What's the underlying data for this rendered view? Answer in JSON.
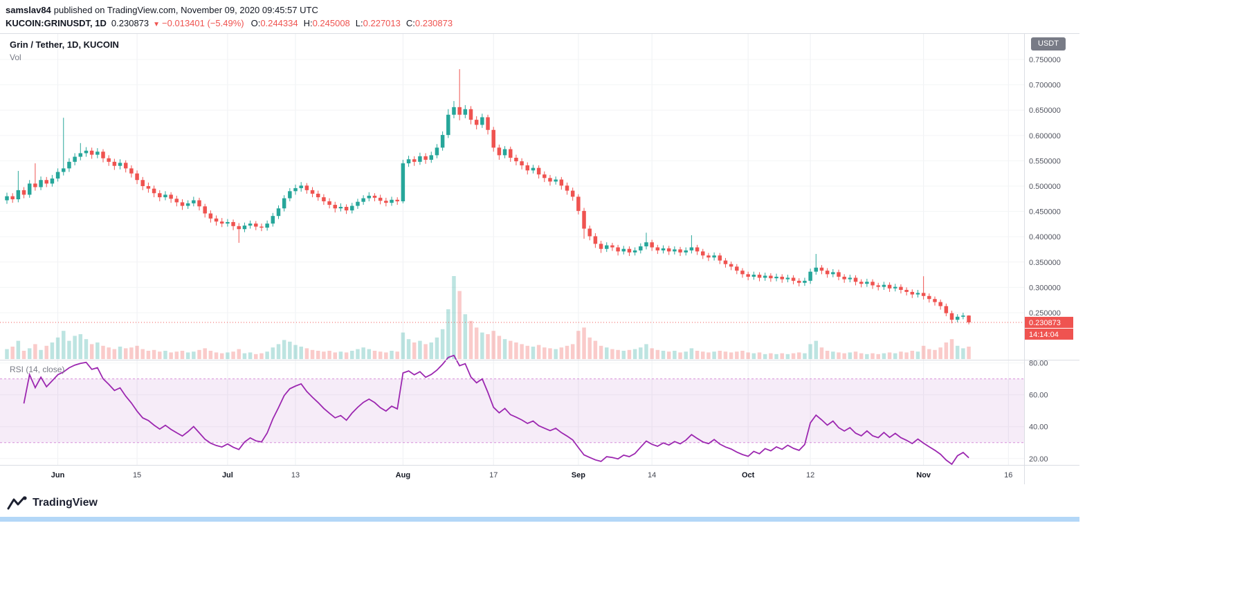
{
  "header": {
    "user": "samslav84",
    "rest": "published on TradingView.com, November 09, 2020 09:45:57 UTC"
  },
  "symbol_bar": {
    "symbol": "KUCOIN:GRINUSDT, 1D",
    "last": "0.230873",
    "arrow": "▼",
    "change": "−0.013401 (−5.49%)",
    "o_label": "O:",
    "o_value": "0.244334",
    "h_label": "H:",
    "h_value": "0.245008",
    "l_label": "L:",
    "l_value": "0.227013",
    "c_label": "C:",
    "c_value": "0.230873"
  },
  "panes": {
    "main_title": "Grin / Tether, 1D, KUCOIN",
    "vol_label": "Vol",
    "rsi_title": "RSI (14, close)"
  },
  "axis": {
    "currency": "USDT"
  },
  "footer": {
    "logo": "TradingView"
  },
  "chart_data": {
    "type": "candlestick",
    "title": "Grin / Tether, 1D, KUCOIN",
    "volume_label": "Vol",
    "rsi_label": "RSI (14, close)",
    "slots": 181,
    "last_price": 0.230873,
    "last_price_label": "0.230873",
    "countdown": "14:14:04",
    "price_axis": {
      "range": [
        0.157,
        0.802
      ],
      "tick_values": [
        0.75,
        0.7,
        0.65,
        0.6,
        0.55,
        0.5,
        0.45,
        0.4,
        0.35,
        0.3,
        0.25
      ],
      "tick_labels": [
        "0.750000",
        "0.700000",
        "0.650000",
        "0.600000",
        "0.550000",
        "0.500000",
        "0.450000",
        "0.400000",
        "0.350000",
        "0.300000",
        "0.250000"
      ],
      "unit": "USDT"
    },
    "rsi_axis": {
      "range": [
        16,
        82
      ],
      "tick_values": [
        80,
        60,
        40,
        20
      ],
      "tick_labels": [
        "80.00",
        "60.00",
        "40.00",
        "20.00"
      ],
      "band": [
        30,
        70
      ]
    },
    "time_ticks": [
      {
        "i": 9,
        "label": "Jun",
        "m": 1
      },
      {
        "i": 23,
        "label": "15"
      },
      {
        "i": 39,
        "label": "Jul",
        "m": 1
      },
      {
        "i": 51,
        "label": "13"
      },
      {
        "i": 70,
        "label": "Aug",
        "m": 1
      },
      {
        "i": 86,
        "label": "17"
      },
      {
        "i": 101,
        "label": "Sep",
        "m": 1
      },
      {
        "i": 114,
        "label": "14"
      },
      {
        "i": 131,
        "label": "Oct",
        "m": 1
      },
      {
        "i": 142,
        "label": "12"
      },
      {
        "i": 162,
        "label": "Nov",
        "m": 1
      },
      {
        "i": 177,
        "label": "16"
      }
    ],
    "colors": {
      "up": "#26a69a",
      "down": "#ef5350",
      "vol_up": "rgba(38,166,154,0.3)",
      "vol_down": "rgba(239,83,80,0.3)",
      "rsi_line": "#9c27b0",
      "band_fill": "rgba(156,39,176,0.09)",
      "band_line": "#d68fd9",
      "grid": "#eef0f3",
      "hgrid": "#f3f4f6",
      "border": "#dadde3",
      "last_line": "#ef5350"
    },
    "candles": [
      [
        0.472,
        0.487,
        0.465,
        0.48,
        1.2
      ],
      [
        0.48,
        0.486,
        0.467,
        0.474,
        1.5
      ],
      [
        0.474,
        0.53,
        0.468,
        0.492,
        2.2
      ],
      [
        0.492,
        0.498,
        0.476,
        0.483,
        1.0
      ],
      [
        0.483,
        0.512,
        0.477,
        0.505,
        1.3
      ],
      [
        0.505,
        0.545,
        0.491,
        0.498,
        1.8
      ],
      [
        0.498,
        0.519,
        0.492,
        0.512,
        1.1
      ],
      [
        0.512,
        0.518,
        0.498,
        0.505,
        1.6
      ],
      [
        0.505,
        0.522,
        0.499,
        0.515,
        2.0
      ],
      [
        0.515,
        0.535,
        0.509,
        0.528,
        2.6
      ],
      [
        0.528,
        0.635,
        0.521,
        0.535,
        3.4
      ],
      [
        0.535,
        0.555,
        0.528,
        0.548,
        2.2
      ],
      [
        0.548,
        0.565,
        0.541,
        0.558,
        2.8
      ],
      [
        0.558,
        0.585,
        0.551,
        0.565,
        3.0
      ],
      [
        0.565,
        0.577,
        0.558,
        0.57,
        2.4
      ],
      [
        0.57,
        0.576,
        0.554,
        0.562,
        1.8
      ],
      [
        0.562,
        0.575,
        0.555,
        0.568,
        2.0
      ],
      [
        0.568,
        0.573,
        0.547,
        0.555,
        1.6
      ],
      [
        0.555,
        0.561,
        0.54,
        0.548,
        1.4
      ],
      [
        0.548,
        0.554,
        0.532,
        0.54,
        1.2
      ],
      [
        0.54,
        0.553,
        0.533,
        0.546,
        1.5
      ],
      [
        0.546,
        0.551,
        0.527,
        0.535,
        1.3
      ],
      [
        0.535,
        0.541,
        0.517,
        0.525,
        1.4
      ],
      [
        0.525,
        0.531,
        0.504,
        0.512,
        1.6
      ],
      [
        0.512,
        0.518,
        0.492,
        0.5,
        1.2
      ],
      [
        0.5,
        0.507,
        0.487,
        0.495,
        1.0
      ],
      [
        0.495,
        0.501,
        0.478,
        0.486,
        1.1
      ],
      [
        0.486,
        0.492,
        0.47,
        0.478,
        0.9
      ],
      [
        0.478,
        0.49,
        0.472,
        0.483,
        1.0
      ],
      [
        0.483,
        0.488,
        0.467,
        0.475,
        0.8
      ],
      [
        0.475,
        0.481,
        0.46,
        0.468,
        0.9
      ],
      [
        0.468,
        0.474,
        0.453,
        0.461,
        1.0
      ],
      [
        0.461,
        0.472,
        0.455,
        0.466,
        0.8
      ],
      [
        0.466,
        0.479,
        0.46,
        0.472,
        0.9
      ],
      [
        0.472,
        0.477,
        0.452,
        0.46,
        1.1
      ],
      [
        0.46,
        0.465,
        0.438,
        0.446,
        1.3
      ],
      [
        0.446,
        0.452,
        0.428,
        0.436,
        1.0
      ],
      [
        0.436,
        0.442,
        0.422,
        0.43,
        0.8
      ],
      [
        0.43,
        0.437,
        0.419,
        0.426,
        0.7
      ],
      [
        0.426,
        0.435,
        0.42,
        0.429,
        0.8
      ],
      [
        0.429,
        0.434,
        0.413,
        0.421,
        0.9
      ],
      [
        0.421,
        0.427,
        0.388,
        0.415,
        1.2
      ],
      [
        0.415,
        0.428,
        0.409,
        0.422,
        0.7
      ],
      [
        0.422,
        0.432,
        0.416,
        0.426,
        0.8
      ],
      [
        0.426,
        0.431,
        0.413,
        0.42,
        0.6
      ],
      [
        0.42,
        0.426,
        0.411,
        0.418,
        0.7
      ],
      [
        0.418,
        0.432,
        0.412,
        0.426,
        0.9
      ],
      [
        0.426,
        0.447,
        0.42,
        0.441,
        1.4
      ],
      [
        0.441,
        0.462,
        0.435,
        0.456,
        1.8
      ],
      [
        0.456,
        0.482,
        0.45,
        0.476,
        2.3
      ],
      [
        0.476,
        0.496,
        0.47,
        0.49,
        2.1
      ],
      [
        0.49,
        0.503,
        0.483,
        0.496,
        1.7
      ],
      [
        0.496,
        0.508,
        0.489,
        0.501,
        1.5
      ],
      [
        0.501,
        0.506,
        0.485,
        0.492,
        1.3
      ],
      [
        0.492,
        0.498,
        0.478,
        0.485,
        1.1
      ],
      [
        0.485,
        0.491,
        0.471,
        0.478,
        1.0
      ],
      [
        0.478,
        0.484,
        0.463,
        0.47,
        0.9
      ],
      [
        0.47,
        0.476,
        0.456,
        0.463,
        1.0
      ],
      [
        0.463,
        0.469,
        0.448,
        0.456,
        0.8
      ],
      [
        0.456,
        0.466,
        0.45,
        0.459,
        0.9
      ],
      [
        0.459,
        0.464,
        0.445,
        0.452,
        0.8
      ],
      [
        0.452,
        0.467,
        0.446,
        0.461,
        1.0
      ],
      [
        0.461,
        0.475,
        0.455,
        0.469,
        1.2
      ],
      [
        0.469,
        0.482,
        0.463,
        0.476,
        1.4
      ],
      [
        0.476,
        0.488,
        0.47,
        0.481,
        1.2
      ],
      [
        0.481,
        0.486,
        0.47,
        0.477,
        1.0
      ],
      [
        0.477,
        0.483,
        0.464,
        0.471,
        0.9
      ],
      [
        0.471,
        0.477,
        0.46,
        0.467,
        0.8
      ],
      [
        0.467,
        0.479,
        0.461,
        0.473,
        1.0
      ],
      [
        0.473,
        0.478,
        0.463,
        0.47,
        0.9
      ],
      [
        0.47,
        0.552,
        0.466,
        0.545,
        3.2
      ],
      [
        0.545,
        0.56,
        0.538,
        0.553,
        2.4
      ],
      [
        0.553,
        0.559,
        0.54,
        0.548,
        2.0
      ],
      [
        0.548,
        0.566,
        0.542,
        0.559,
        2.2
      ],
      [
        0.559,
        0.565,
        0.544,
        0.552,
        1.8
      ],
      [
        0.552,
        0.568,
        0.546,
        0.561,
        2.0
      ],
      [
        0.561,
        0.583,
        0.555,
        0.576,
        2.6
      ],
      [
        0.576,
        0.608,
        0.57,
        0.601,
        3.6
      ],
      [
        0.601,
        0.652,
        0.595,
        0.641,
        6.0
      ],
      [
        0.641,
        0.668,
        0.634,
        0.656,
        10.0
      ],
      [
        0.656,
        0.731,
        0.63,
        0.641,
        8.2
      ],
      [
        0.641,
        0.66,
        0.634,
        0.652,
        5.4
      ],
      [
        0.652,
        0.658,
        0.622,
        0.631,
        4.6
      ],
      [
        0.631,
        0.638,
        0.612,
        0.621,
        3.8
      ],
      [
        0.621,
        0.643,
        0.615,
        0.636,
        3.2
      ],
      [
        0.636,
        0.641,
        0.602,
        0.611,
        3.0
      ],
      [
        0.611,
        0.617,
        0.568,
        0.576,
        3.4
      ],
      [
        0.576,
        0.582,
        0.552,
        0.561,
        2.8
      ],
      [
        0.561,
        0.579,
        0.555,
        0.573,
        2.4
      ],
      [
        0.573,
        0.578,
        0.548,
        0.556,
        2.2
      ],
      [
        0.556,
        0.562,
        0.541,
        0.549,
        2.0
      ],
      [
        0.549,
        0.555,
        0.533,
        0.541,
        1.8
      ],
      [
        0.541,
        0.547,
        0.523,
        0.531,
        1.6
      ],
      [
        0.531,
        0.542,
        0.525,
        0.536,
        1.5
      ],
      [
        0.536,
        0.541,
        0.515,
        0.523,
        1.7
      ],
      [
        0.523,
        0.529,
        0.508,
        0.516,
        1.4
      ],
      [
        0.516,
        0.522,
        0.501,
        0.509,
        1.3
      ],
      [
        0.509,
        0.519,
        0.503,
        0.513,
        1.2
      ],
      [
        0.513,
        0.518,
        0.493,
        0.501,
        1.4
      ],
      [
        0.501,
        0.507,
        0.483,
        0.491,
        1.6
      ],
      [
        0.491,
        0.497,
        0.471,
        0.479,
        1.8
      ],
      [
        0.479,
        0.484,
        0.444,
        0.451,
        3.4
      ],
      [
        0.451,
        0.457,
        0.396,
        0.416,
        3.8
      ],
      [
        0.416,
        0.422,
        0.393,
        0.401,
        2.6
      ],
      [
        0.401,
        0.407,
        0.378,
        0.386,
        2.2
      ],
      [
        0.386,
        0.392,
        0.368,
        0.376,
        1.6
      ],
      [
        0.376,
        0.389,
        0.37,
        0.383,
        1.4
      ],
      [
        0.383,
        0.388,
        0.372,
        0.379,
        1.2
      ],
      [
        0.379,
        0.384,
        0.363,
        0.371,
        1.1
      ],
      [
        0.371,
        0.382,
        0.365,
        0.376,
        1.0
      ],
      [
        0.376,
        0.381,
        0.362,
        0.369,
        1.1
      ],
      [
        0.369,
        0.379,
        0.363,
        0.373,
        1.2
      ],
      [
        0.373,
        0.387,
        0.367,
        0.381,
        1.4
      ],
      [
        0.381,
        0.408,
        0.375,
        0.389,
        1.8
      ],
      [
        0.389,
        0.394,
        0.372,
        0.379,
        1.3
      ],
      [
        0.379,
        0.384,
        0.366,
        0.373,
        1.1
      ],
      [
        0.373,
        0.383,
        0.367,
        0.377,
        1.0
      ],
      [
        0.377,
        0.382,
        0.364,
        0.371,
        0.9
      ],
      [
        0.371,
        0.381,
        0.365,
        0.375,
        1.0
      ],
      [
        0.375,
        0.38,
        0.362,
        0.369,
        0.8
      ],
      [
        0.369,
        0.379,
        0.363,
        0.373,
        0.9
      ],
      [
        0.373,
        0.403,
        0.367,
        0.379,
        1.3
      ],
      [
        0.379,
        0.384,
        0.364,
        0.371,
        1.0
      ],
      [
        0.371,
        0.376,
        0.356,
        0.363,
        0.9
      ],
      [
        0.363,
        0.368,
        0.352,
        0.359,
        0.8
      ],
      [
        0.359,
        0.369,
        0.353,
        0.363,
        0.9
      ],
      [
        0.363,
        0.368,
        0.346,
        0.353,
        1.0
      ],
      [
        0.353,
        0.358,
        0.339,
        0.346,
        0.9
      ],
      [
        0.346,
        0.351,
        0.334,
        0.341,
        0.8
      ],
      [
        0.341,
        0.346,
        0.326,
        0.333,
        0.9
      ],
      [
        0.333,
        0.338,
        0.319,
        0.326,
        1.0
      ],
      [
        0.326,
        0.331,
        0.314,
        0.321,
        0.8
      ],
      [
        0.321,
        0.331,
        0.315,
        0.325,
        0.7
      ],
      [
        0.325,
        0.33,
        0.312,
        0.319,
        0.8
      ],
      [
        0.319,
        0.329,
        0.313,
        0.323,
        0.6
      ],
      [
        0.323,
        0.328,
        0.311,
        0.318,
        0.7
      ],
      [
        0.318,
        0.327,
        0.312,
        0.321,
        0.6
      ],
      [
        0.321,
        0.326,
        0.309,
        0.316,
        0.7
      ],
      [
        0.316,
        0.325,
        0.31,
        0.319,
        0.6
      ],
      [
        0.319,
        0.324,
        0.306,
        0.313,
        0.7
      ],
      [
        0.313,
        0.318,
        0.302,
        0.309,
        0.8
      ],
      [
        0.309,
        0.319,
        0.303,
        0.313,
        0.7
      ],
      [
        0.313,
        0.337,
        0.307,
        0.331,
        1.8
      ],
      [
        0.331,
        0.366,
        0.325,
        0.339,
        2.2
      ],
      [
        0.339,
        0.344,
        0.326,
        0.333,
        1.4
      ],
      [
        0.333,
        0.338,
        0.319,
        0.326,
        1.0
      ],
      [
        0.326,
        0.336,
        0.32,
        0.33,
        0.9
      ],
      [
        0.33,
        0.335,
        0.314,
        0.321,
        0.8
      ],
      [
        0.321,
        0.326,
        0.309,
        0.316,
        0.7
      ],
      [
        0.316,
        0.325,
        0.31,
        0.319,
        0.8
      ],
      [
        0.319,
        0.324,
        0.304,
        0.311,
        0.9
      ],
      [
        0.311,
        0.316,
        0.3,
        0.307,
        0.7
      ],
      [
        0.307,
        0.317,
        0.301,
        0.311,
        0.6
      ],
      [
        0.311,
        0.316,
        0.297,
        0.304,
        0.7
      ],
      [
        0.304,
        0.309,
        0.294,
        0.301,
        0.6
      ],
      [
        0.301,
        0.311,
        0.295,
        0.305,
        0.7
      ],
      [
        0.305,
        0.31,
        0.291,
        0.298,
        0.8
      ],
      [
        0.298,
        0.307,
        0.292,
        0.301,
        0.7
      ],
      [
        0.301,
        0.306,
        0.288,
        0.295,
        0.9
      ],
      [
        0.295,
        0.3,
        0.284,
        0.291,
        0.8
      ],
      [
        0.291,
        0.296,
        0.279,
        0.286,
        1.0
      ],
      [
        0.286,
        0.295,
        0.28,
        0.289,
        0.9
      ],
      [
        0.289,
        0.322,
        0.276,
        0.283,
        1.6
      ],
      [
        0.283,
        0.288,
        0.27,
        0.277,
        1.2
      ],
      [
        0.277,
        0.282,
        0.264,
        0.271,
        1.1
      ],
      [
        0.271,
        0.276,
        0.256,
        0.263,
        1.4
      ],
      [
        0.263,
        0.268,
        0.243,
        0.249,
        2.0
      ],
      [
        0.249,
        0.254,
        0.229,
        0.236,
        2.4
      ],
      [
        0.236,
        0.247,
        0.231,
        0.242,
        1.6
      ],
      [
        0.242,
        0.25,
        0.237,
        0.2443,
        1.3
      ],
      [
        0.244334,
        0.245008,
        0.227013,
        0.230873,
        1.5
      ]
    ]
  }
}
